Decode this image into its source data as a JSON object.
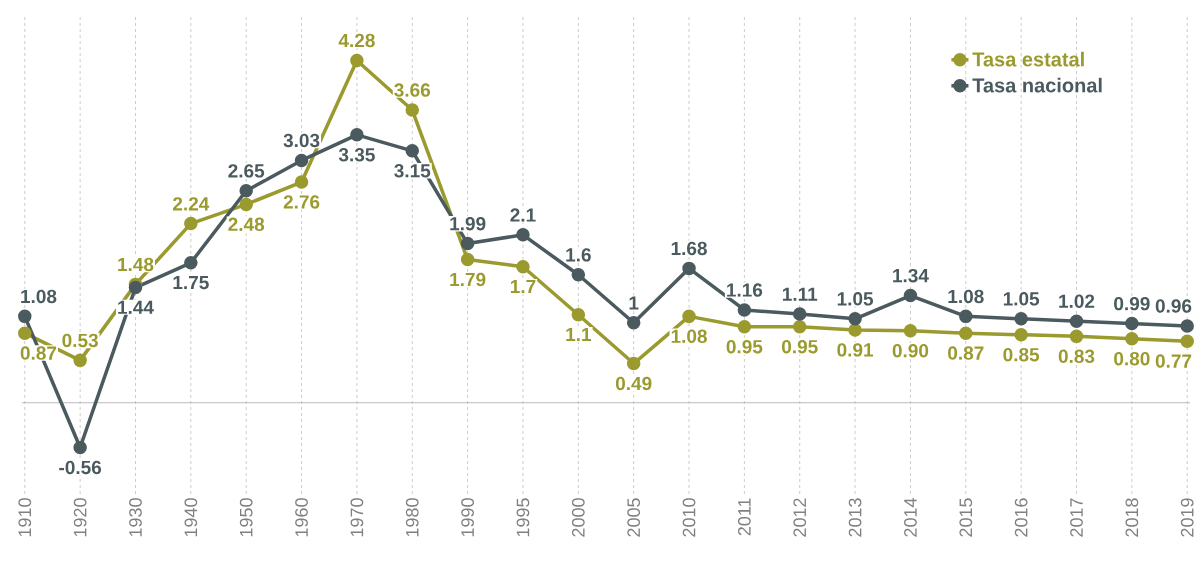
{
  "chart_data": {
    "type": "line",
    "categories": [
      "1910",
      "1920",
      "1930",
      "1940",
      "1950",
      "1960",
      "1970",
      "1980",
      "1990",
      "1995",
      "2000",
      "2005",
      "2010",
      "2011",
      "2012",
      "2013",
      "2014",
      "2015",
      "2016",
      "2017",
      "2018",
      "2019"
    ],
    "series": [
      {
        "name": "Tasa estatal",
        "color": "#9a9a2e",
        "values": [
          0.87,
          0.53,
          1.48,
          2.24,
          2.48,
          2.76,
          4.28,
          3.66,
          1.79,
          1.7,
          1.1,
          0.49,
          1.08,
          0.95,
          0.95,
          0.91,
          0.9,
          0.87,
          0.85,
          0.83,
          0.8,
          0.77
        ],
        "value_labels": [
          "0.87",
          "0.53",
          "1.48",
          "2.24",
          "2.48",
          "2.76",
          "4.28",
          "3.66",
          "1.79",
          "1.7",
          "1.1",
          "0.49",
          "1.08",
          "0.95",
          "0.95",
          "0.91",
          "0.90",
          "0.87",
          "0.85",
          "0.83",
          "0.80",
          "0.77"
        ]
      },
      {
        "name": "Tasa nacional",
        "color": "#4a5a5e",
        "values": [
          1.08,
          -0.56,
          1.44,
          1.75,
          2.65,
          3.03,
          3.35,
          3.15,
          1.99,
          2.1,
          1.6,
          1,
          1.68,
          1.16,
          1.11,
          1.05,
          1.34,
          1.08,
          1.05,
          1.02,
          0.99,
          0.96
        ],
        "value_labels": [
          "1.08",
          "-0.56",
          "1.44",
          "1.75",
          "2.65",
          "3.03",
          "3.35",
          "3.15",
          "1.99",
          "2.1",
          "1.6",
          "1",
          "1.68",
          "1.16",
          "1.11",
          "1.05",
          "1.34",
          "1.08",
          "1.05",
          "1.02",
          "0.99",
          "0.96"
        ]
      }
    ],
    "ref_lines": [
      {
        "axis": "y",
        "value": 0,
        "color": "#bbbbbb"
      }
    ],
    "grid": "x",
    "legend": "top right",
    "marker": "circle",
    "line_style": "solid"
  }
}
